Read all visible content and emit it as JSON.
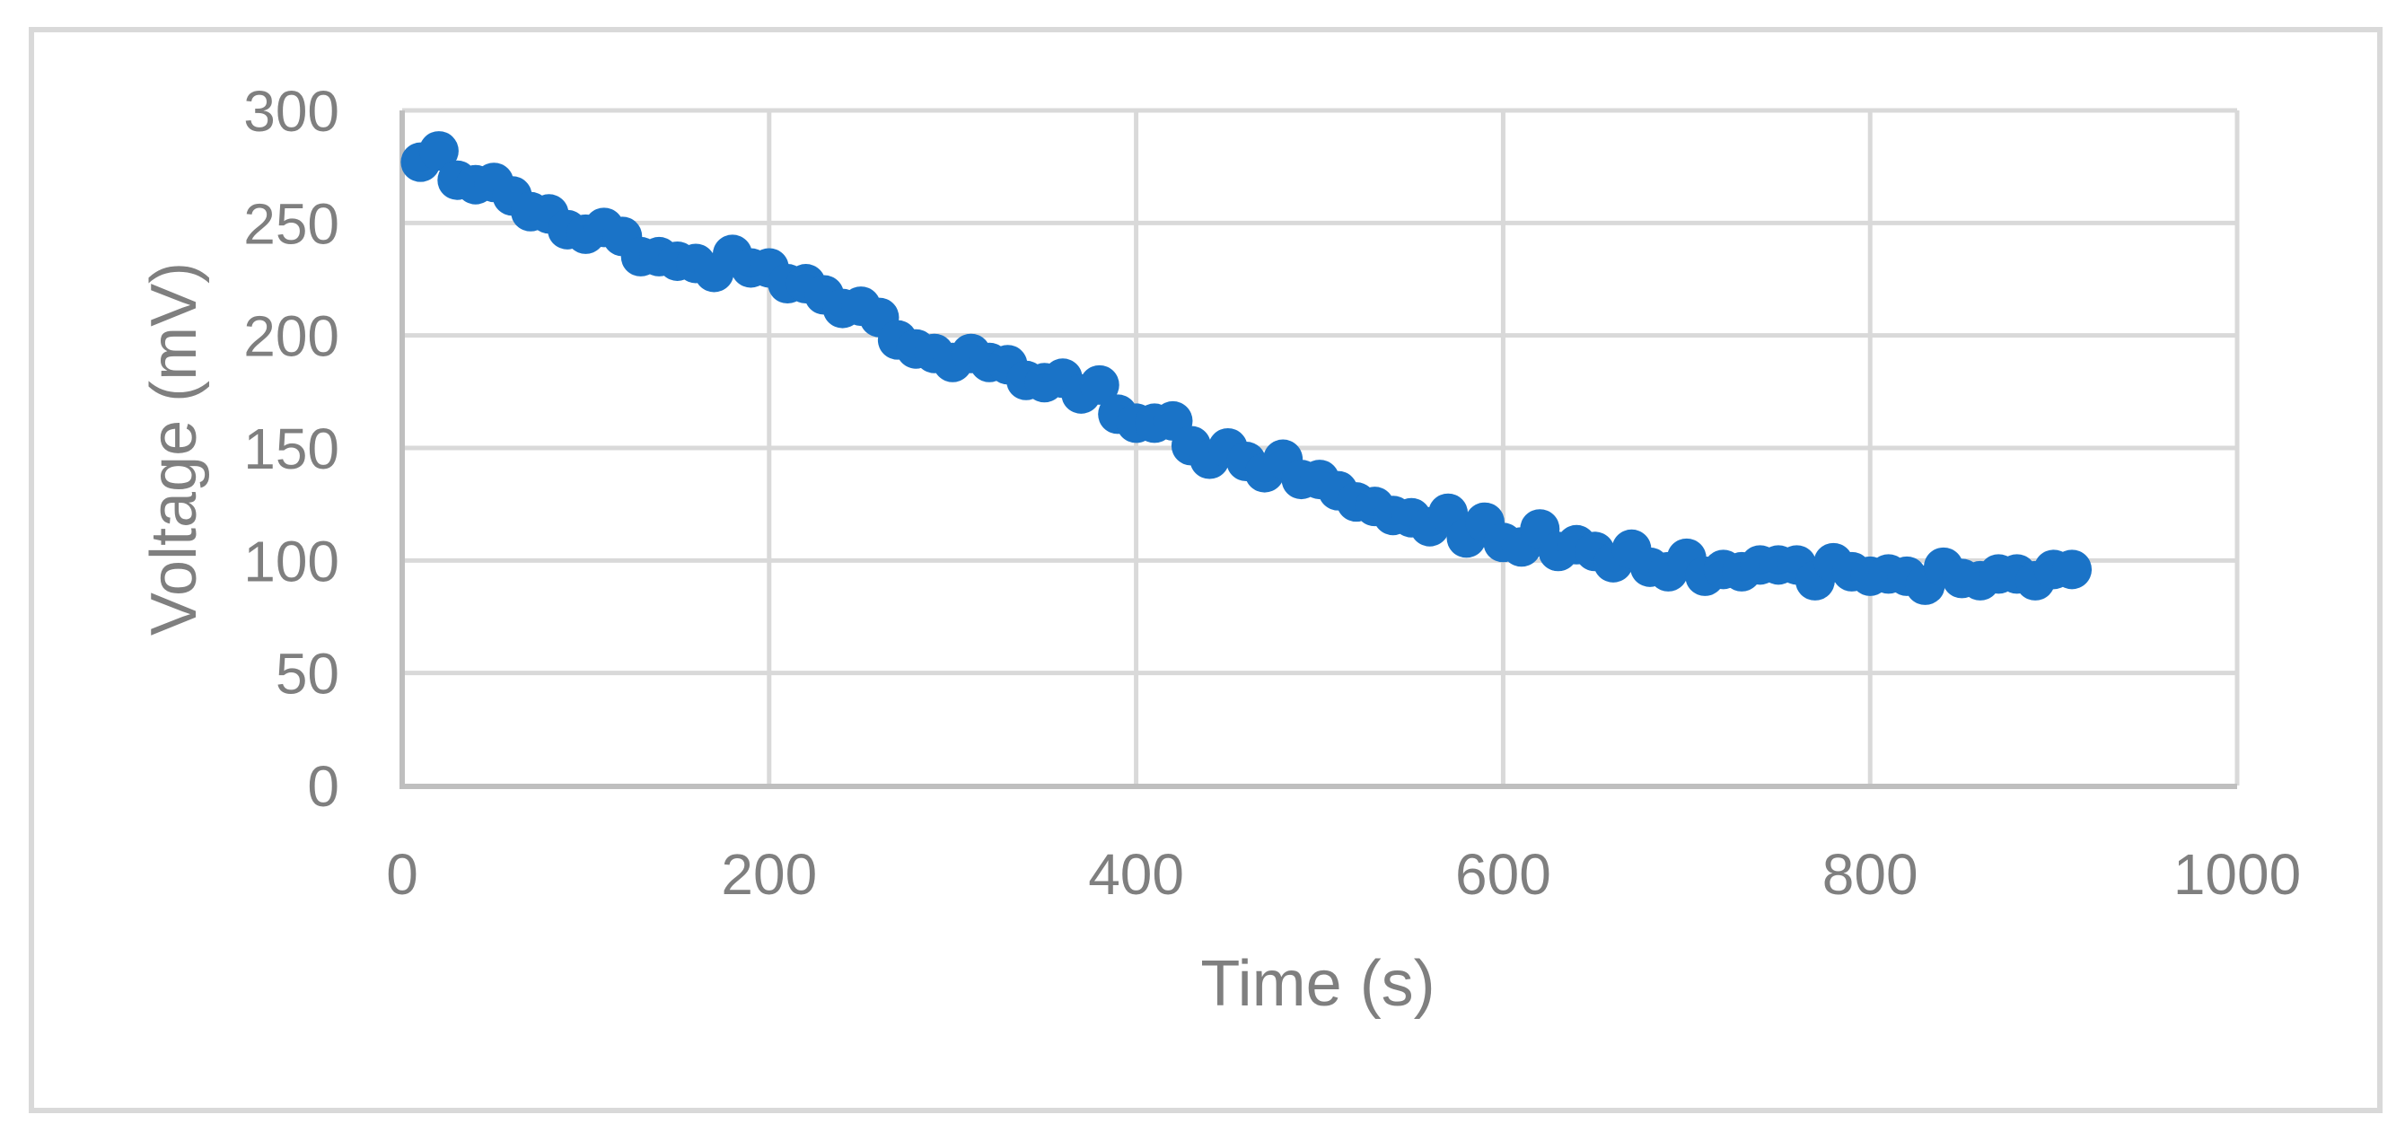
{
  "chart_data": {
    "type": "scatter",
    "title": "",
    "xlabel": "Time (s)",
    "ylabel": "Voltage (mV)",
    "xlim": [
      0,
      1000
    ],
    "ylim": [
      0,
      300
    ],
    "x_ticks": [
      0,
      200,
      400,
      600,
      800,
      1000
    ],
    "y_ticks": [
      0,
      50,
      100,
      150,
      200,
      250,
      300
    ],
    "grid": true,
    "legend": null,
    "marker_color": "#1a73c7",
    "series": [
      {
        "name": "Voltage",
        "x": [
          10,
          20,
          30,
          40,
          50,
          60,
          70,
          80,
          90,
          100,
          110,
          120,
          130,
          140,
          150,
          160,
          170,
          180,
          190,
          200,
          210,
          220,
          230,
          240,
          250,
          260,
          270,
          280,
          290,
          300,
          310,
          320,
          330,
          340,
          350,
          360,
          370,
          380,
          390,
          400,
          410,
          420,
          430,
          440,
          450,
          460,
          470,
          480,
          490,
          500,
          510,
          520,
          530,
          540,
          550,
          560,
          570,
          580,
          590,
          600,
          610,
          620,
          630,
          640,
          650,
          660,
          670,
          680,
          690,
          700,
          710,
          720,
          730,
          740,
          750,
          760,
          770,
          780,
          790,
          800,
          810,
          820,
          830,
          840,
          850,
          860,
          870,
          880,
          890,
          900,
          910
        ],
        "y": [
          277,
          282,
          269,
          267,
          268,
          262,
          255,
          254,
          247,
          245,
          248,
          244,
          235,
          235,
          233,
          232,
          228,
          236,
          230,
          230,
          223,
          223,
          218,
          212,
          213,
          208,
          198,
          194,
          192,
          188,
          192,
          188,
          187,
          180,
          179,
          181,
          174,
          178,
          165,
          161,
          161,
          162,
          151,
          145,
          150,
          144,
          139,
          145,
          136,
          136,
          131,
          126,
          124,
          120,
          119,
          115,
          121,
          110,
          117,
          108,
          106,
          114,
          104,
          107,
          104,
          99,
          105,
          97,
          95,
          101,
          93,
          96,
          95,
          98,
          98,
          98,
          91,
          99,
          95,
          93,
          94,
          93,
          89,
          97,
          92,
          91,
          94,
          94,
          91,
          96,
          96
        ]
      }
    ]
  },
  "axes": {
    "x_title": "Time (s)",
    "y_title": "Voltage (mV)",
    "x_tick_labels": [
      "0",
      "200",
      "400",
      "600",
      "800",
      "1000"
    ],
    "y_tick_labels": [
      "0",
      "50",
      "100",
      "150",
      "200",
      "250",
      "300"
    ]
  },
  "colors": {
    "marker": "#1a73c7",
    "gridline": "#d9d9d9",
    "axis_line": "#bfbfbf",
    "text": "#7f7f7f",
    "frame_border": "#d9d9d9"
  }
}
